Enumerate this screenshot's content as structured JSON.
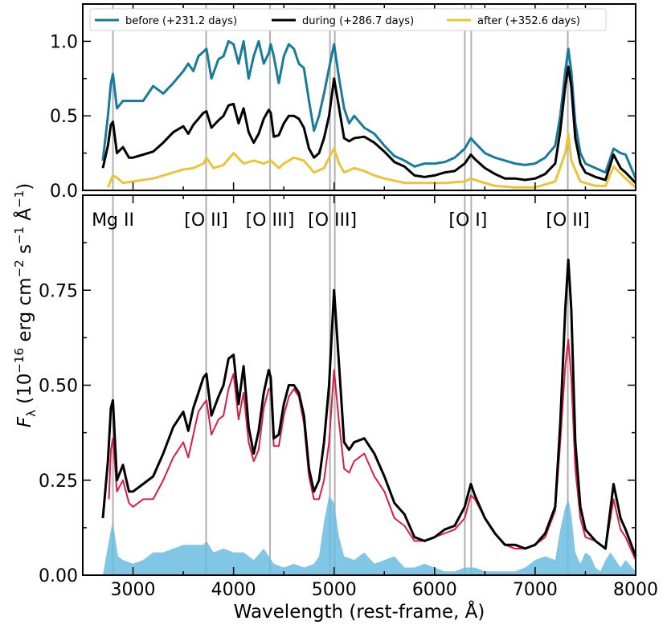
{
  "chart_data": [
    {
      "type": "line",
      "panel": "top",
      "xlim": [
        2500,
        8000
      ],
      "ylim": [
        0,
        1.25
      ],
      "yticks": [
        0,
        0.5,
        1.0
      ],
      "ytick_labels": [
        "0.0",
        "0.5",
        "1.0"
      ],
      "legend": {
        "placement": "top",
        "entries": [
          "before (+231.2 days)",
          "during (+286.7 days)",
          "after (+352.6 days)"
        ]
      },
      "series": [
        {
          "name": "before (+231.2 days)",
          "color": "#1a7a9a",
          "x": [
            2700,
            2750,
            2780,
            2800,
            2840,
            2900,
            2960,
            3000,
            3100,
            3200,
            3300,
            3400,
            3500,
            3550,
            3600,
            3650,
            3700,
            3730,
            3780,
            3850,
            3900,
            3950,
            4000,
            4050,
            4100,
            4150,
            4200,
            4250,
            4300,
            4350,
            4370,
            4400,
            4450,
            4500,
            4550,
            4600,
            4650,
            4700,
            4750,
            4800,
            4850,
            4900,
            4950,
            5000,
            5050,
            5100,
            5150,
            5200,
            5300,
            5400,
            5500,
            5600,
            5700,
            5800,
            5900,
            6000,
            6100,
            6200,
            6300,
            6360,
            6400,
            6500,
            6600,
            6700,
            6800,
            6900,
            7000,
            7100,
            7200,
            7250,
            7300,
            7330,
            7360,
            7400,
            7450,
            7500,
            7600,
            7700,
            7780,
            7850,
            7900,
            8000
          ],
          "y": [
            0.2,
            0.5,
            0.72,
            0.78,
            0.55,
            0.6,
            0.6,
            0.6,
            0.6,
            0.7,
            0.65,
            0.72,
            0.8,
            0.85,
            0.8,
            0.9,
            0.93,
            0.95,
            0.75,
            0.88,
            0.9,
            1.0,
            0.98,
            0.85,
            1.0,
            0.75,
            0.9,
            1.0,
            0.85,
            0.92,
            0.98,
            0.9,
            0.72,
            0.9,
            0.98,
            0.95,
            0.85,
            0.82,
            0.6,
            0.4,
            0.5,
            0.65,
            0.82,
            0.98,
            0.75,
            0.55,
            0.45,
            0.5,
            0.42,
            0.38,
            0.3,
            0.23,
            0.2,
            0.16,
            0.18,
            0.18,
            0.19,
            0.22,
            0.28,
            0.35,
            0.32,
            0.25,
            0.22,
            0.2,
            0.18,
            0.17,
            0.18,
            0.22,
            0.3,
            0.5,
            0.8,
            0.95,
            0.8,
            0.45,
            0.25,
            0.18,
            0.15,
            0.12,
            0.28,
            0.25,
            0.24,
            0.08
          ]
        },
        {
          "name": "during (+286.7 days)",
          "color": "#000000",
          "x": [
            2700,
            2750,
            2780,
            2800,
            2840,
            2900,
            2960,
            3000,
            3100,
            3200,
            3300,
            3400,
            3500,
            3550,
            3600,
            3650,
            3700,
            3730,
            3780,
            3850,
            3900,
            3950,
            4000,
            4050,
            4100,
            4150,
            4200,
            4250,
            4300,
            4350,
            4370,
            4400,
            4450,
            4500,
            4550,
            4600,
            4650,
            4700,
            4750,
            4800,
            4850,
            4900,
            4950,
            5000,
            5050,
            5100,
            5150,
            5200,
            5300,
            5400,
            5500,
            5600,
            5700,
            5800,
            5900,
            6000,
            6100,
            6200,
            6300,
            6360,
            6400,
            6500,
            6600,
            6700,
            6800,
            6900,
            7000,
            7100,
            7200,
            7250,
            7300,
            7330,
            7360,
            7400,
            7450,
            7500,
            7600,
            7700,
            7780,
            7850,
            7900,
            8000
          ],
          "y": [
            0.15,
            0.3,
            0.44,
            0.46,
            0.25,
            0.29,
            0.22,
            0.22,
            0.24,
            0.26,
            0.32,
            0.39,
            0.43,
            0.38,
            0.44,
            0.48,
            0.52,
            0.53,
            0.42,
            0.47,
            0.5,
            0.57,
            0.58,
            0.45,
            0.55,
            0.39,
            0.32,
            0.38,
            0.48,
            0.54,
            0.52,
            0.36,
            0.37,
            0.45,
            0.5,
            0.5,
            0.48,
            0.42,
            0.28,
            0.22,
            0.25,
            0.35,
            0.5,
            0.75,
            0.55,
            0.35,
            0.33,
            0.35,
            0.36,
            0.32,
            0.26,
            0.19,
            0.16,
            0.1,
            0.09,
            0.1,
            0.12,
            0.13,
            0.18,
            0.24,
            0.21,
            0.15,
            0.11,
            0.08,
            0.08,
            0.07,
            0.08,
            0.11,
            0.18,
            0.4,
            0.7,
            0.83,
            0.7,
            0.35,
            0.18,
            0.12,
            0.09,
            0.07,
            0.24,
            0.15,
            0.12,
            0.05
          ]
        },
        {
          "name": "after (+352.6 days)",
          "color": "#e8c440",
          "x": [
            2750,
            2800,
            2850,
            2900,
            3000,
            3100,
            3200,
            3300,
            3400,
            3500,
            3600,
            3700,
            3730,
            3800,
            3900,
            4000,
            4100,
            4200,
            4300,
            4370,
            4450,
            4500,
            4600,
            4700,
            4800,
            4900,
            4950,
            5000,
            5050,
            5100,
            5200,
            5300,
            5400,
            5500,
            5700,
            5900,
            6100,
            6300,
            6360,
            6400,
            6600,
            6800,
            7000,
            7200,
            7300,
            7330,
            7360,
            7450,
            7600,
            7700,
            7780,
            7900,
            8000
          ],
          "y": [
            0.02,
            0.1,
            0.08,
            0.05,
            0.06,
            0.07,
            0.08,
            0.1,
            0.12,
            0.14,
            0.15,
            0.18,
            0.22,
            0.15,
            0.17,
            0.25,
            0.18,
            0.2,
            0.18,
            0.2,
            0.15,
            0.18,
            0.22,
            0.2,
            0.12,
            0.15,
            0.22,
            0.28,
            0.18,
            0.12,
            0.15,
            0.13,
            0.1,
            0.08,
            0.05,
            0.05,
            0.05,
            0.06,
            0.08,
            0.07,
            0.03,
            0.02,
            0.02,
            0.06,
            0.25,
            0.38,
            0.2,
            0.06,
            0.03,
            0.03,
            0.16,
            0.08,
            0.02
          ]
        }
      ]
    },
    {
      "type": "line",
      "panel": "bottom",
      "xlim": [
        2500,
        8000
      ],
      "ylim": [
        0,
        1.0
      ],
      "xlabel": "Wavelength (rest-frame, Å)",
      "ylabel": "F_λ (10^−16 erg cm^−2 s^−1 Å^−1)",
      "xticks": [
        3000,
        4000,
        5000,
        6000,
        7000,
        8000
      ],
      "yticks": [
        0,
        0.25,
        0.5,
        0.75
      ],
      "ytick_labels": [
        "0.00",
        "0.25",
        "0.50",
        "0.75"
      ],
      "line_ids": [
        {
          "label": "Mg II",
          "x": [
            2800
          ]
        },
        {
          "label": "[O II]",
          "x": [
            3727
          ]
        },
        {
          "label": "[O III]",
          "x": [
            4363
          ]
        },
        {
          "label": "[O III]",
          "x": [
            4959,
            5007
          ]
        },
        {
          "label": "[O I]",
          "x": [
            6300,
            6364
          ]
        },
        {
          "label": "[O II]",
          "x": [
            7325
          ]
        }
      ],
      "series": [
        {
          "name": "during",
          "color": "#000000",
          "x": [
            2700,
            2750,
            2780,
            2800,
            2840,
            2900,
            2960,
            3000,
            3100,
            3200,
            3300,
            3400,
            3500,
            3550,
            3600,
            3650,
            3700,
            3730,
            3780,
            3850,
            3900,
            3950,
            4000,
            4050,
            4100,
            4150,
            4200,
            4250,
            4300,
            4350,
            4370,
            4400,
            4450,
            4500,
            4550,
            4600,
            4650,
            4700,
            4750,
            4800,
            4850,
            4900,
            4950,
            5000,
            5050,
            5100,
            5150,
            5200,
            5300,
            5400,
            5500,
            5600,
            5700,
            5800,
            5900,
            6000,
            6100,
            6200,
            6300,
            6360,
            6400,
            6500,
            6600,
            6700,
            6800,
            6900,
            7000,
            7100,
            7200,
            7250,
            7300,
            7330,
            7360,
            7400,
            7450,
            7500,
            7600,
            7700,
            7780,
            7850,
            7900,
            8000
          ],
          "y": [
            0.15,
            0.3,
            0.44,
            0.46,
            0.25,
            0.29,
            0.22,
            0.22,
            0.24,
            0.26,
            0.32,
            0.39,
            0.43,
            0.38,
            0.44,
            0.48,
            0.52,
            0.53,
            0.42,
            0.47,
            0.5,
            0.57,
            0.58,
            0.45,
            0.55,
            0.39,
            0.32,
            0.38,
            0.48,
            0.54,
            0.52,
            0.36,
            0.37,
            0.45,
            0.5,
            0.5,
            0.48,
            0.42,
            0.28,
            0.22,
            0.25,
            0.35,
            0.5,
            0.75,
            0.55,
            0.35,
            0.33,
            0.35,
            0.36,
            0.32,
            0.26,
            0.19,
            0.16,
            0.1,
            0.09,
            0.1,
            0.12,
            0.13,
            0.18,
            0.24,
            0.21,
            0.15,
            0.11,
            0.08,
            0.08,
            0.07,
            0.08,
            0.11,
            0.18,
            0.4,
            0.7,
            0.83,
            0.7,
            0.35,
            0.18,
            0.12,
            0.09,
            0.07,
            0.24,
            0.15,
            0.12,
            0.05
          ]
        },
        {
          "name": "",
          "color": "#d81e44",
          "x": [
            2760,
            2780,
            2800,
            2840,
            2900,
            2960,
            3000,
            3100,
            3200,
            3300,
            3400,
            3500,
            3550,
            3600,
            3650,
            3700,
            3730,
            3780,
            3850,
            3900,
            3950,
            4000,
            4050,
            4100,
            4150,
            4200,
            4250,
            4300,
            4350,
            4370,
            4400,
            4450,
            4500,
            4550,
            4600,
            4650,
            4700,
            4750,
            4800,
            4850,
            4900,
            4950,
            5000,
            5050,
            5100,
            5150,
            5200,
            5300,
            5400,
            5500,
            5600,
            5700,
            5800,
            5900,
            6000,
            6100,
            6200,
            6300,
            6360,
            6400,
            6500,
            6600,
            6700,
            6800,
            6900,
            7000,
            7100,
            7200,
            7250,
            7300,
            7330,
            7360,
            7400,
            7450,
            7500,
            7600,
            7700,
            7780,
            7850,
            7900,
            8000
          ],
          "y": [
            0.2,
            0.33,
            0.36,
            0.22,
            0.25,
            0.19,
            0.18,
            0.2,
            0.2,
            0.25,
            0.31,
            0.35,
            0.31,
            0.37,
            0.43,
            0.45,
            0.46,
            0.37,
            0.41,
            0.42,
            0.49,
            0.53,
            0.41,
            0.48,
            0.35,
            0.3,
            0.33,
            0.44,
            0.49,
            0.49,
            0.34,
            0.34,
            0.42,
            0.47,
            0.49,
            0.47,
            0.4,
            0.26,
            0.2,
            0.2,
            0.25,
            0.35,
            0.54,
            0.4,
            0.28,
            0.27,
            0.3,
            0.32,
            0.26,
            0.22,
            0.15,
            0.13,
            0.09,
            0.09,
            0.1,
            0.11,
            0.12,
            0.15,
            0.21,
            0.2,
            0.15,
            0.11,
            0.08,
            0.07,
            0.07,
            0.08,
            0.1,
            0.17,
            0.35,
            0.55,
            0.62,
            0.52,
            0.28,
            0.15,
            0.1,
            0.09,
            0.07,
            0.2,
            0.12,
            0.1,
            0.04
          ]
        },
        {
          "name": "",
          "color": "#6bbcdf",
          "fill": true,
          "x": [
            2700,
            2780,
            2800,
            2850,
            2900,
            3000,
            3100,
            3200,
            3300,
            3400,
            3500,
            3600,
            3700,
            3730,
            3800,
            3900,
            4000,
            4100,
            4200,
            4300,
            4350,
            4400,
            4500,
            4600,
            4700,
            4800,
            4850,
            4900,
            4950,
            5000,
            5050,
            5100,
            5200,
            5300,
            5400,
            5500,
            5600,
            5700,
            5800,
            5900,
            6000,
            6100,
            6200,
            6300,
            6400,
            6500,
            6600,
            6700,
            6800,
            6900,
            7000,
            7100,
            7200,
            7250,
            7300,
            7330,
            7360,
            7400,
            7450,
            7500,
            7550,
            7600,
            7650,
            7700,
            7750,
            7800,
            7850,
            7900,
            8000
          ],
          "y": [
            0.0,
            0.12,
            0.14,
            0.05,
            0.04,
            0.03,
            0.04,
            0.06,
            0.06,
            0.07,
            0.08,
            0.08,
            0.08,
            0.09,
            0.06,
            0.07,
            0.06,
            0.06,
            0.04,
            0.07,
            0.05,
            0.03,
            0.02,
            0.03,
            0.02,
            0.03,
            0.05,
            0.14,
            0.21,
            0.19,
            0.1,
            0.05,
            0.04,
            0.06,
            0.03,
            0.04,
            0.05,
            0.02,
            0.02,
            0.03,
            0.02,
            0.01,
            0.01,
            0.02,
            0.02,
            0.01,
            0.01,
            0.01,
            0.01,
            0.02,
            0.04,
            0.05,
            0.04,
            0.12,
            0.18,
            0.2,
            0.16,
            0.06,
            0.03,
            0.06,
            0.05,
            0.02,
            0.01,
            0.04,
            0.06,
            0.04,
            0.02,
            0.04,
            0.01
          ]
        }
      ]
    }
  ]
}
